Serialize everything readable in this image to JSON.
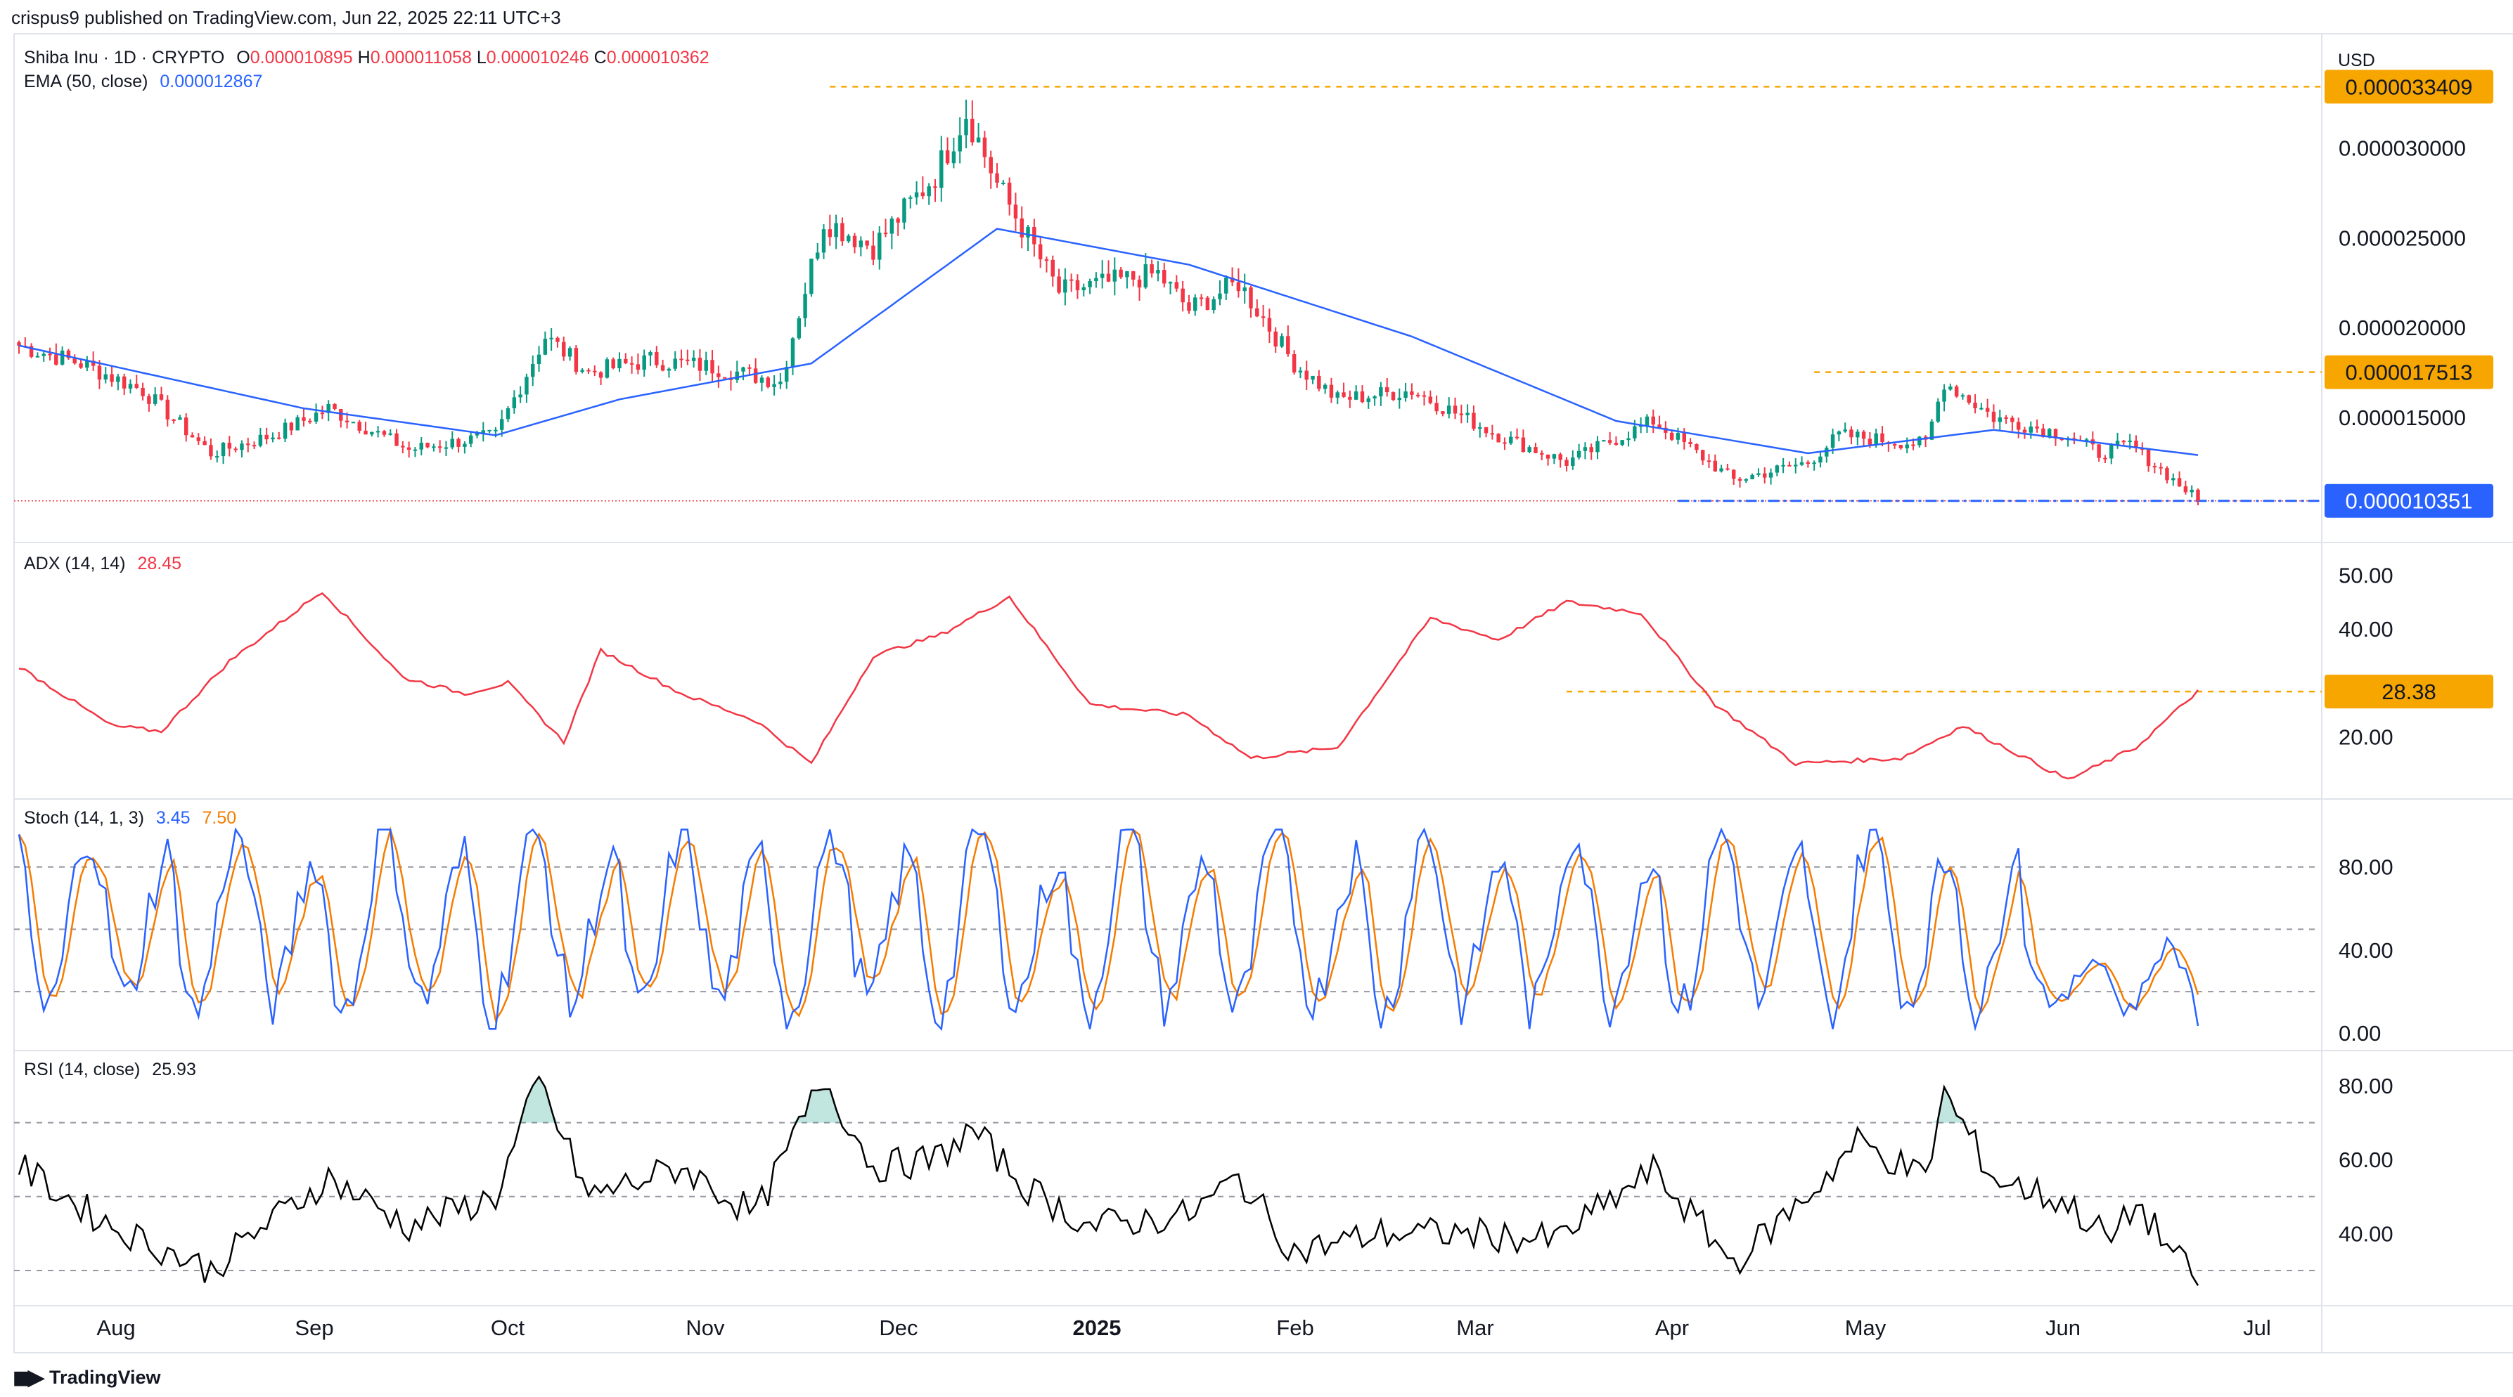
{
  "header": {
    "published": "crispus9 published on TradingView.com, Jun 22, 2025 22:11 UTC+3",
    "symbol": "Shiba Inu · 1D · CRYPTO",
    "ohlc": {
      "o_label": "O",
      "o": "0.000010895",
      "h_label": "H",
      "h": "0.000011058",
      "l_label": "L",
      "l": "0.000010246",
      "c_label": "C",
      "c": "0.000010362"
    },
    "ema_label": "EMA (50, close)",
    "ema_value": "0.000012867",
    "currency": "USD"
  },
  "footer": {
    "logo_text": "TradingView"
  },
  "colors": {
    "up": "#089981",
    "down": "#f23645",
    "ema": "#2962ff",
    "adx": "#f23645",
    "k": "#2962ff",
    "d": "#f57c00",
    "rsi": "#000000",
    "ref": "#f7a600",
    "last": "#2962ff"
  },
  "chart_data": [
    {
      "type": "candlestick",
      "x_ticks": [
        "Aug",
        "Sep",
        "Oct",
        "Nov",
        "Dec",
        "2025",
        "Feb",
        "Mar",
        "Apr",
        "May",
        "Jun",
        "Jul"
      ],
      "y_ticks": [
        1.5e-05,
        2e-05,
        2.5e-05,
        3e-05
      ],
      "y_tick_labels": [
        "0.000015000",
        "0.000020000",
        "0.000025000",
        "0.000030000"
      ],
      "ylim": [
        8.5e-06,
        3.55e-05
      ],
      "date_range": [
        "2024-07-05",
        "2025-06-22"
      ],
      "price_markers": [
        {
          "label": "0.000033409",
          "value": 3.3409e-05,
          "kind": "high",
          "line_from": "2024-11-13"
        },
        {
          "label": "0.000017513",
          "value": 1.7513e-05,
          "kind": "swing",
          "line_from": "2025-04-21"
        },
        {
          "label": "0.000010351",
          "value": 1.0351e-05,
          "kind": "last",
          "line_from": "2025-03-30"
        }
      ],
      "anchors": [
        [
          "2024-07-05",
          1.9e-05
        ],
        [
          "2024-07-15",
          1.8e-05
        ],
        [
          "2024-07-25",
          1.65e-05
        ],
        [
          "2024-08-05",
          1.3e-05
        ],
        [
          "2024-08-15",
          1.4e-05
        ],
        [
          "2024-08-24",
          1.55e-05
        ],
        [
          "2024-09-06",
          1.32e-05
        ],
        [
          "2024-09-20",
          1.4e-05
        ],
        [
          "2024-09-28",
          1.95e-05
        ],
        [
          "2024-10-05",
          1.75e-05
        ],
        [
          "2024-10-15",
          1.82e-05
        ],
        [
          "2024-10-25",
          1.78e-05
        ],
        [
          "2024-11-05",
          1.7e-05
        ],
        [
          "2024-11-12",
          2.6e-05
        ],
        [
          "2024-11-20",
          2.45e-05
        ],
        [
          "2024-11-30",
          2.85e-05
        ],
        [
          "2024-12-05",
          3.2e-05
        ],
        [
          "2024-12-10",
          2.8e-05
        ],
        [
          "2024-12-20",
          2.2e-05
        ],
        [
          "2025-01-05",
          2.3e-05
        ],
        [
          "2025-01-10",
          2.1e-05
        ],
        [
          "2025-01-18",
          2.25e-05
        ],
        [
          "2025-01-27",
          1.8e-05
        ],
        [
          "2025-02-03",
          1.6e-05
        ],
        [
          "2025-02-15",
          1.65e-05
        ],
        [
          "2025-03-01",
          1.4e-05
        ],
        [
          "2025-03-12",
          1.25e-05
        ],
        [
          "2025-03-26",
          1.48e-05
        ],
        [
          "2025-04-08",
          1.15e-05
        ],
        [
          "2025-04-20",
          1.25e-05
        ],
        [
          "2025-04-25",
          1.4e-05
        ],
        [
          "2025-05-09",
          1.35e-05
        ],
        [
          "2025-05-12",
          1.7e-05
        ],
        [
          "2025-05-20",
          1.5e-05
        ],
        [
          "2025-06-01",
          1.4e-05
        ],
        [
          "2025-06-06",
          1.3e-05
        ],
        [
          "2025-06-11",
          1.35e-05
        ],
        [
          "2025-06-22",
          1.04e-05
        ]
      ],
      "ema_anchors": [
        [
          "2024-07-05",
          1.9e-05
        ],
        [
          "2024-08-20",
          1.55e-05
        ],
        [
          "2024-09-20",
          1.4e-05
        ],
        [
          "2024-10-10",
          1.6e-05
        ],
        [
          "2024-11-10",
          1.8e-05
        ],
        [
          "2024-12-10",
          2.55e-05
        ],
        [
          "2025-01-10",
          2.35e-05
        ],
        [
          "2025-02-15",
          1.95e-05
        ],
        [
          "2025-03-20",
          1.48e-05
        ],
        [
          "2025-04-20",
          1.3e-05
        ],
        [
          "2025-05-20",
          1.43e-05
        ],
        [
          "2025-06-22",
          1.29e-05
        ]
      ]
    },
    {
      "type": "line",
      "name": "ADX (14, 14)",
      "label_value": "28.45",
      "marker": {
        "label": "28.38",
        "value": 28.38,
        "line_from": "2025-03-12"
      },
      "ylim": [
        10,
        55
      ],
      "y_ticks": [
        20,
        40,
        50
      ],
      "y_tick_labels": [
        "20.00",
        "40.00",
        "50.00"
      ],
      "anchors": [
        [
          "2024-07-05",
          33
        ],
        [
          "2024-07-20",
          22
        ],
        [
          "2024-07-28",
          21
        ],
        [
          "2024-08-08",
          34
        ],
        [
          "2024-08-23",
          47
        ],
        [
          "2024-09-05",
          31
        ],
        [
          "2024-09-15",
          28
        ],
        [
          "2024-09-22",
          30
        ],
        [
          "2024-10-01",
          19
        ],
        [
          "2024-10-07",
          36
        ],
        [
          "2024-10-20",
          28
        ],
        [
          "2024-11-01",
          23
        ],
        [
          "2024-11-10",
          15
        ],
        [
          "2024-11-20",
          35
        ],
        [
          "2024-12-01",
          39
        ],
        [
          "2024-12-12",
          46
        ],
        [
          "2024-12-25",
          26
        ],
        [
          "2025-01-10",
          24
        ],
        [
          "2025-01-20",
          16
        ],
        [
          "2025-02-03",
          18
        ],
        [
          "2025-02-18",
          42
        ],
        [
          "2025-03-01",
          38
        ],
        [
          "2025-03-12",
          45
        ],
        [
          "2025-03-24",
          43
        ],
        [
          "2025-04-05",
          26
        ],
        [
          "2025-04-18",
          15
        ],
        [
          "2025-05-05",
          16
        ],
        [
          "2025-05-15",
          22
        ],
        [
          "2025-06-01",
          12
        ],
        [
          "2025-06-12",
          18
        ],
        [
          "2025-06-22",
          28.5
        ]
      ]
    },
    {
      "type": "line",
      "name": "Stoch (14, 1, 3)",
      "k_value": "3.45",
      "d_value": "7.50",
      "ylim": [
        -5,
        110
      ],
      "levels": [
        20,
        50,
        80
      ],
      "y_ticks": [
        0,
        40,
        80
      ],
      "y_tick_labels": [
        "0.00",
        "40.00",
        "80.00"
      ],
      "pattern": [
        85,
        70,
        45,
        25,
        10,
        12,
        20,
        35,
        55,
        75,
        90,
        98,
        92,
        80,
        60,
        40,
        25,
        15,
        18,
        30,
        45,
        60,
        72,
        80
      ],
      "final_value": 3.45
    },
    {
      "type": "line",
      "name": "RSI (14, close)",
      "label_value": "25.93",
      "ylim": [
        22,
        88
      ],
      "levels": [
        30,
        50,
        70
      ],
      "y_ticks": [
        40,
        60,
        80
      ],
      "y_tick_labels": [
        "40.00",
        "60.00",
        "80.00"
      ],
      "anchors": [
        [
          "2024-07-05",
          58
        ],
        [
          "2024-07-20",
          42
        ],
        [
          "2024-08-05",
          30
        ],
        [
          "2024-08-12",
          40
        ],
        [
          "2024-08-24",
          55
        ],
        [
          "2024-09-06",
          42
        ],
        [
          "2024-09-20",
          50
        ],
        [
          "2024-09-27",
          81
        ],
        [
          "2024-10-05",
          50
        ],
        [
          "2024-10-20",
          58
        ],
        [
          "2024-11-01",
          45
        ],
        [
          "2024-11-12",
          82
        ],
        [
          "2024-11-20",
          58
        ],
        [
          "2024-11-30",
          60
        ],
        [
          "2024-12-06",
          68
        ],
        [
          "2024-12-15",
          52
        ],
        [
          "2024-12-25",
          42
        ],
        [
          "2025-01-10",
          45
        ],
        [
          "2025-01-18",
          55
        ],
        [
          "2025-01-27",
          35
        ],
        [
          "2025-02-10",
          40
        ],
        [
          "2025-02-25",
          40
        ],
        [
          "2025-03-10",
          38
        ],
        [
          "2025-03-26",
          57
        ],
        [
          "2025-04-08",
          32
        ],
        [
          "2025-04-21",
          52
        ],
        [
          "2025-04-28",
          65
        ],
        [
          "2025-05-09",
          55
        ],
        [
          "2025-05-12",
          78
        ],
        [
          "2025-05-20",
          55
        ],
        [
          "2025-06-01",
          48
        ],
        [
          "2025-06-08",
          38
        ],
        [
          "2025-06-12",
          48
        ],
        [
          "2025-06-22",
          26
        ]
      ]
    }
  ]
}
